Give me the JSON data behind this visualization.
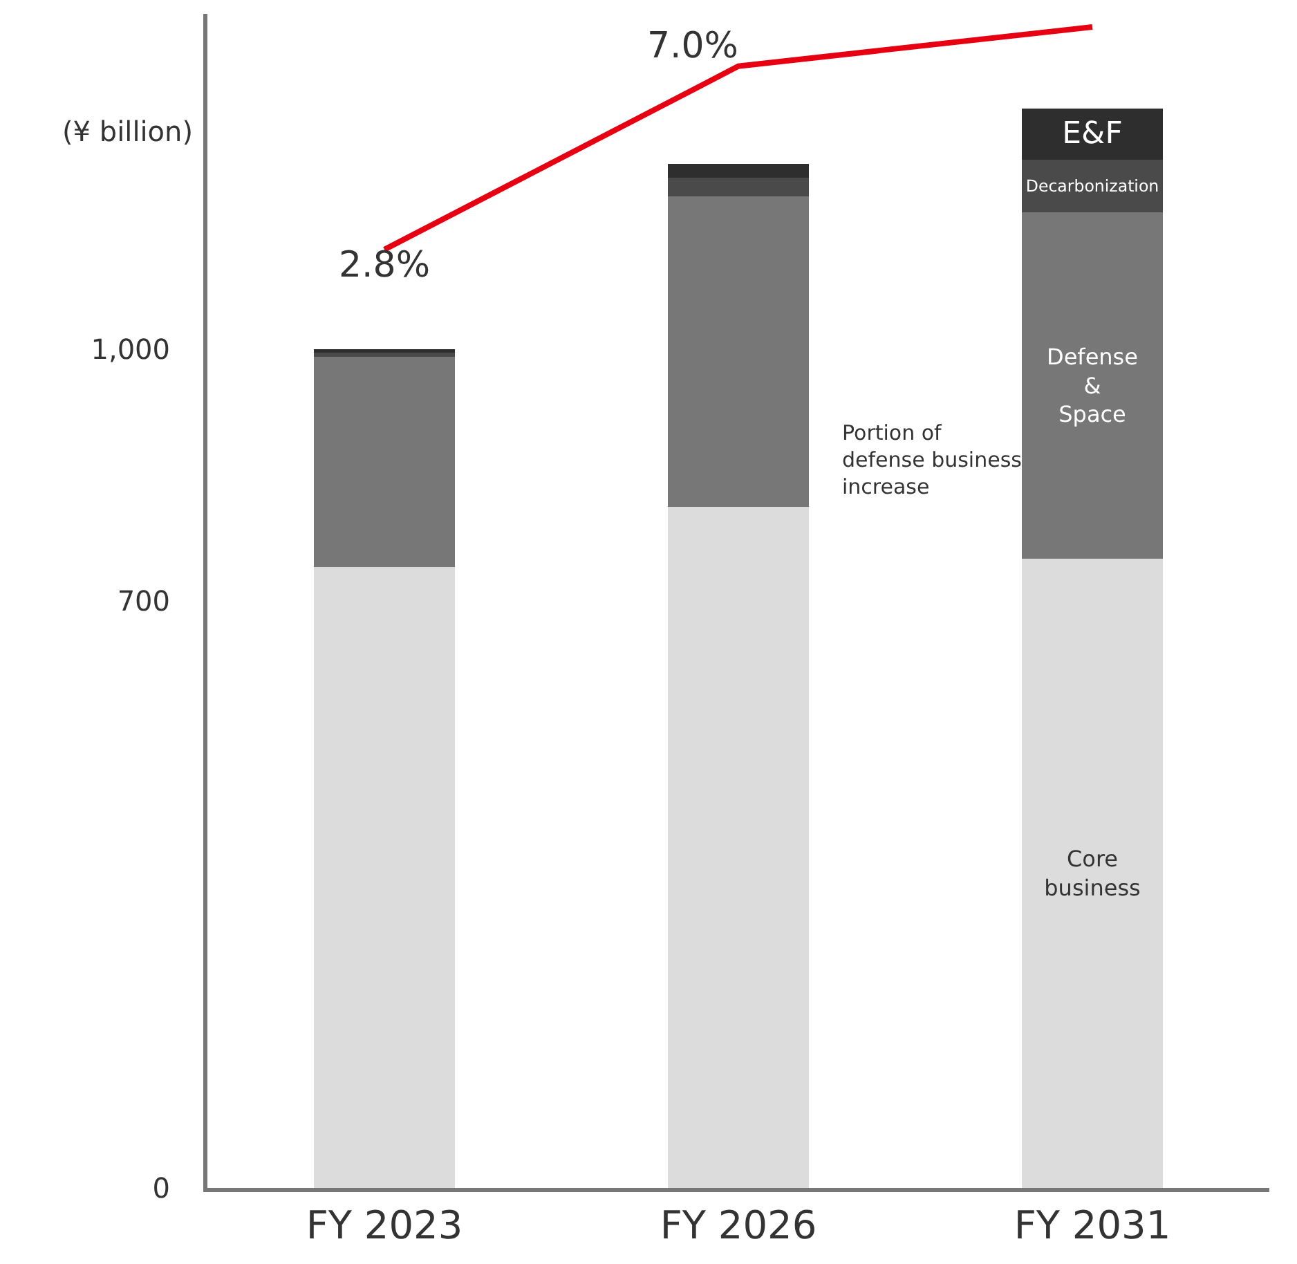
{
  "chart_data": {
    "type": "bar",
    "stacked": true,
    "ylabel": "(¥ billion)",
    "categories": [
      "FY 2023",
      "FY 2026",
      "FY 2031"
    ],
    "ylim": [
      0,
      1400
    ],
    "yticks": [
      0,
      700,
      {
        "value": 1000,
        "label": "1,000"
      }
    ],
    "y2lim": [
      -18.7,
      8.2
    ],
    "grid": false,
    "legend": false,
    "series": [
      {
        "name": "Core business",
        "color": "#dcdcdc",
        "values": [
          740,
          812,
          750
        ]
      },
      {
        "name": "Defense & Space",
        "color": "#777777",
        "values": [
          251,
          370,
          413
        ]
      },
      {
        "name": "Decarbonization",
        "color": "#4a4a4a",
        "values": [
          5,
          23,
          63
        ]
      },
      {
        "name": "E&F",
        "color": "#2e2e2e",
        "values": [
          4,
          16,
          61
        ]
      },
      {
        "type": "line",
        "axis": "y2",
        "color": "#e60012",
        "values": [
          2.8,
          7.0,
          7.9
        ],
        "value_labels": [
          "2.8%",
          "7.0%",
          null
        ]
      }
    ],
    "annotations": [
      "Portion of defense business increase"
    ]
  }
}
